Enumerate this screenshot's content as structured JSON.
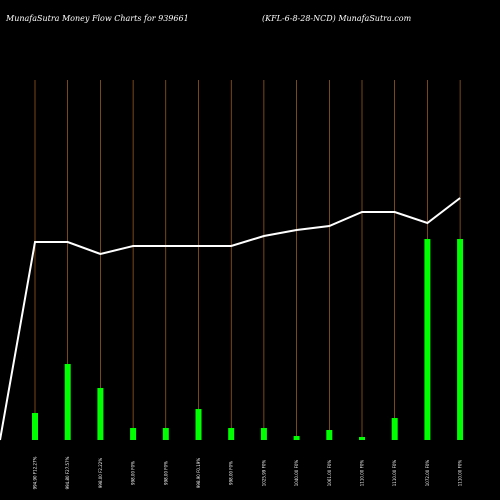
{
  "header": {
    "left_title": "MunafaSutra  Money Flow  Charts for 939661",
    "right_title": "(KFL-6-8-28-NCD) MunafaSutra.com"
  },
  "colors": {
    "background": "#000000",
    "bar": "#00ff00",
    "gridline": "#c87a2a",
    "line": "#ffffff"
  },
  "chart_data": {
    "type": "bar",
    "title": "",
    "xlabel": "",
    "ylabel": "",
    "categories": [
      "994.90 F12.27%",
      "994.80 F27.57%",
      "998.00 F2.22%",
      "998.00 F0%",
      "998.00 F0%",
      "998.90 F0.19%",
      "998.00 F0%",
      "1025.99 F0%",
      "1040.00 F0%",
      "1061.00 F0%",
      "1110.00 F0%",
      "1110.00 F0%",
      "1072.00 F0%",
      "1110.00 F0%"
    ],
    "series": [
      {
        "values": [
          27,
          76,
          52,
          12,
          12,
          31,
          12,
          12,
          4,
          10,
          3,
          22,
          201,
          201
        ]
      },
      {
        "values": [
          42,
          42,
          30,
          38,
          38,
          38,
          38,
          48,
          54,
          58,
          72,
          72,
          61,
          86
        ]
      }
    ],
    "line_origin_value": -155,
    "ylim": [
      0,
      260
    ]
  }
}
